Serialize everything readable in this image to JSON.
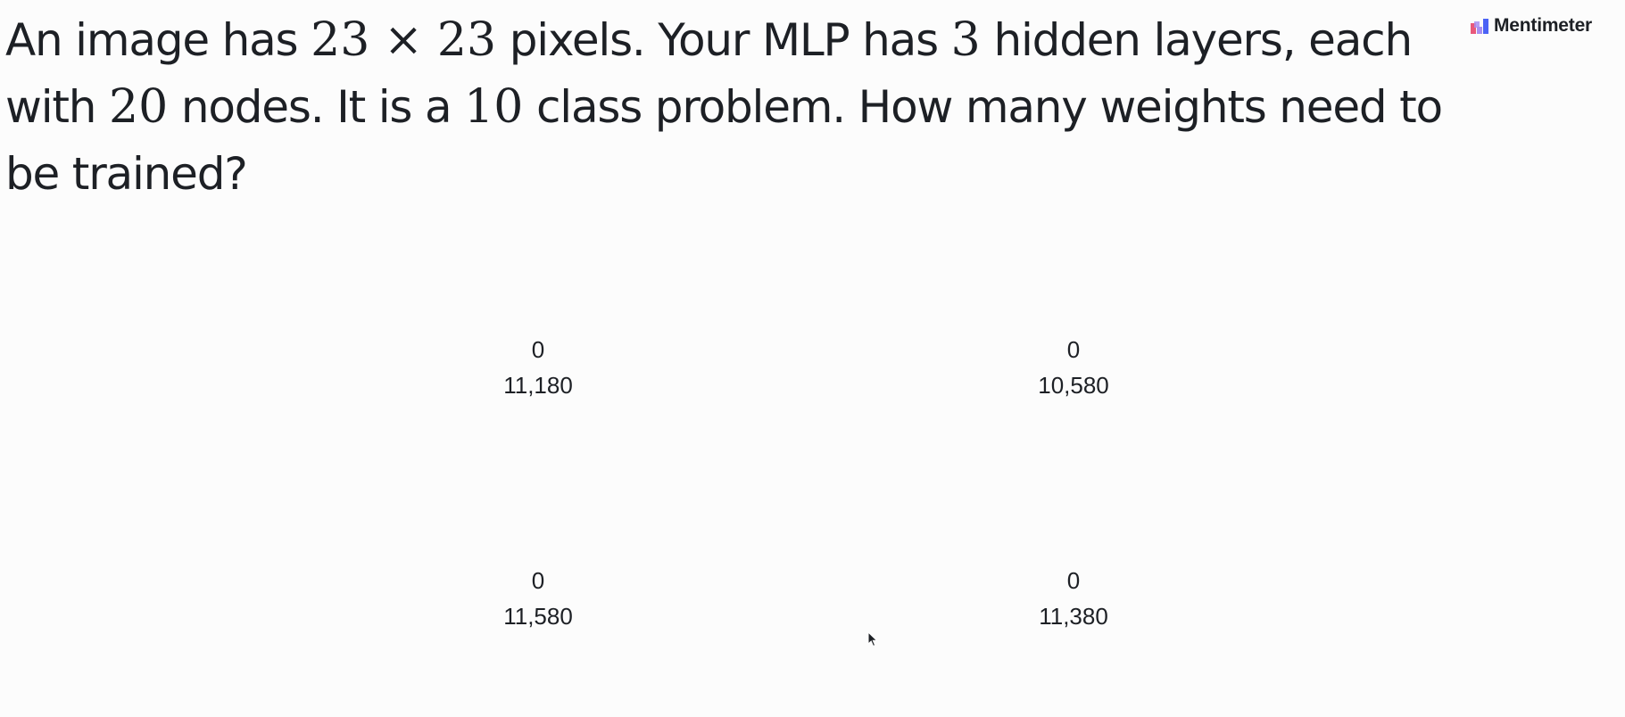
{
  "question": {
    "part1": "An image has",
    "num_pixels_a": "23",
    "times_symbol": "×",
    "num_pixels_b": "23",
    "part2": "pixels. Your MLP has",
    "num_layers": "3",
    "part3": "hidden layers, each with",
    "num_nodes": "20",
    "part4": "nodes. It is a",
    "num_classes": "10",
    "part5": "class problem. How many weights need to be trained?"
  },
  "brand": {
    "name": "Mentimeter",
    "icon": "mentimeter-logo-icon",
    "colors": {
      "bar1": "#e8597b",
      "bar2": "#a88ff2",
      "bar3": "#4b63f5"
    }
  },
  "results": {
    "options": [
      {
        "count": "0",
        "label": "11,180"
      },
      {
        "count": "0",
        "label": "10,580"
      },
      {
        "count": "0",
        "label": "11,580"
      },
      {
        "count": "0",
        "label": "11,380"
      }
    ]
  },
  "cursor": {
    "icon": "mouse-pointer-icon"
  },
  "colors": {
    "background": "#fcfcfc",
    "text": "#1d2025"
  }
}
